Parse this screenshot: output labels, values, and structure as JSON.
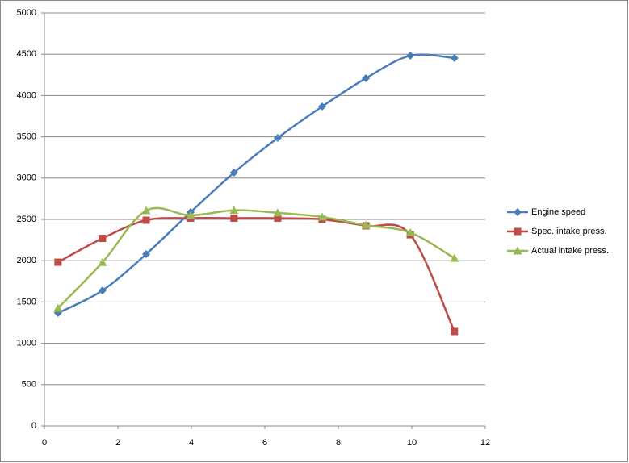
{
  "chart_data": {
    "type": "line",
    "x": [
      0.37,
      1.58,
      2.77,
      3.98,
      5.16,
      6.35,
      7.56,
      8.75,
      9.96,
      11.16
    ],
    "series": [
      {
        "name": "Engine speed",
        "color": "#4a7ebb",
        "marker": "diamond",
        "values": [
          1367,
          1640,
          2080,
          2588,
          3066,
          3486,
          3867,
          4209,
          4482,
          4453
        ]
      },
      {
        "name": "Spec. intake press.",
        "color": "#be4b48",
        "marker": "square",
        "values": [
          1982,
          2270,
          2490,
          2515,
          2515,
          2515,
          2500,
          2422,
          2314,
          1143
        ]
      },
      {
        "name": "Actual intake press.",
        "color": "#98b954",
        "marker": "triangle",
        "values": [
          1426,
          1980,
          2607,
          2550,
          2610,
          2580,
          2530,
          2430,
          2340,
          2030
        ]
      }
    ],
    "xlim": [
      0,
      12
    ],
    "xticks": [
      0,
      2,
      4,
      6,
      8,
      10,
      12
    ],
    "ylim": [
      0,
      5000
    ],
    "yticks": [
      0,
      500,
      1000,
      1500,
      2000,
      2500,
      3000,
      3500,
      4000,
      4500,
      5000
    ],
    "grid": true,
    "smooth": true,
    "legend": "right"
  }
}
